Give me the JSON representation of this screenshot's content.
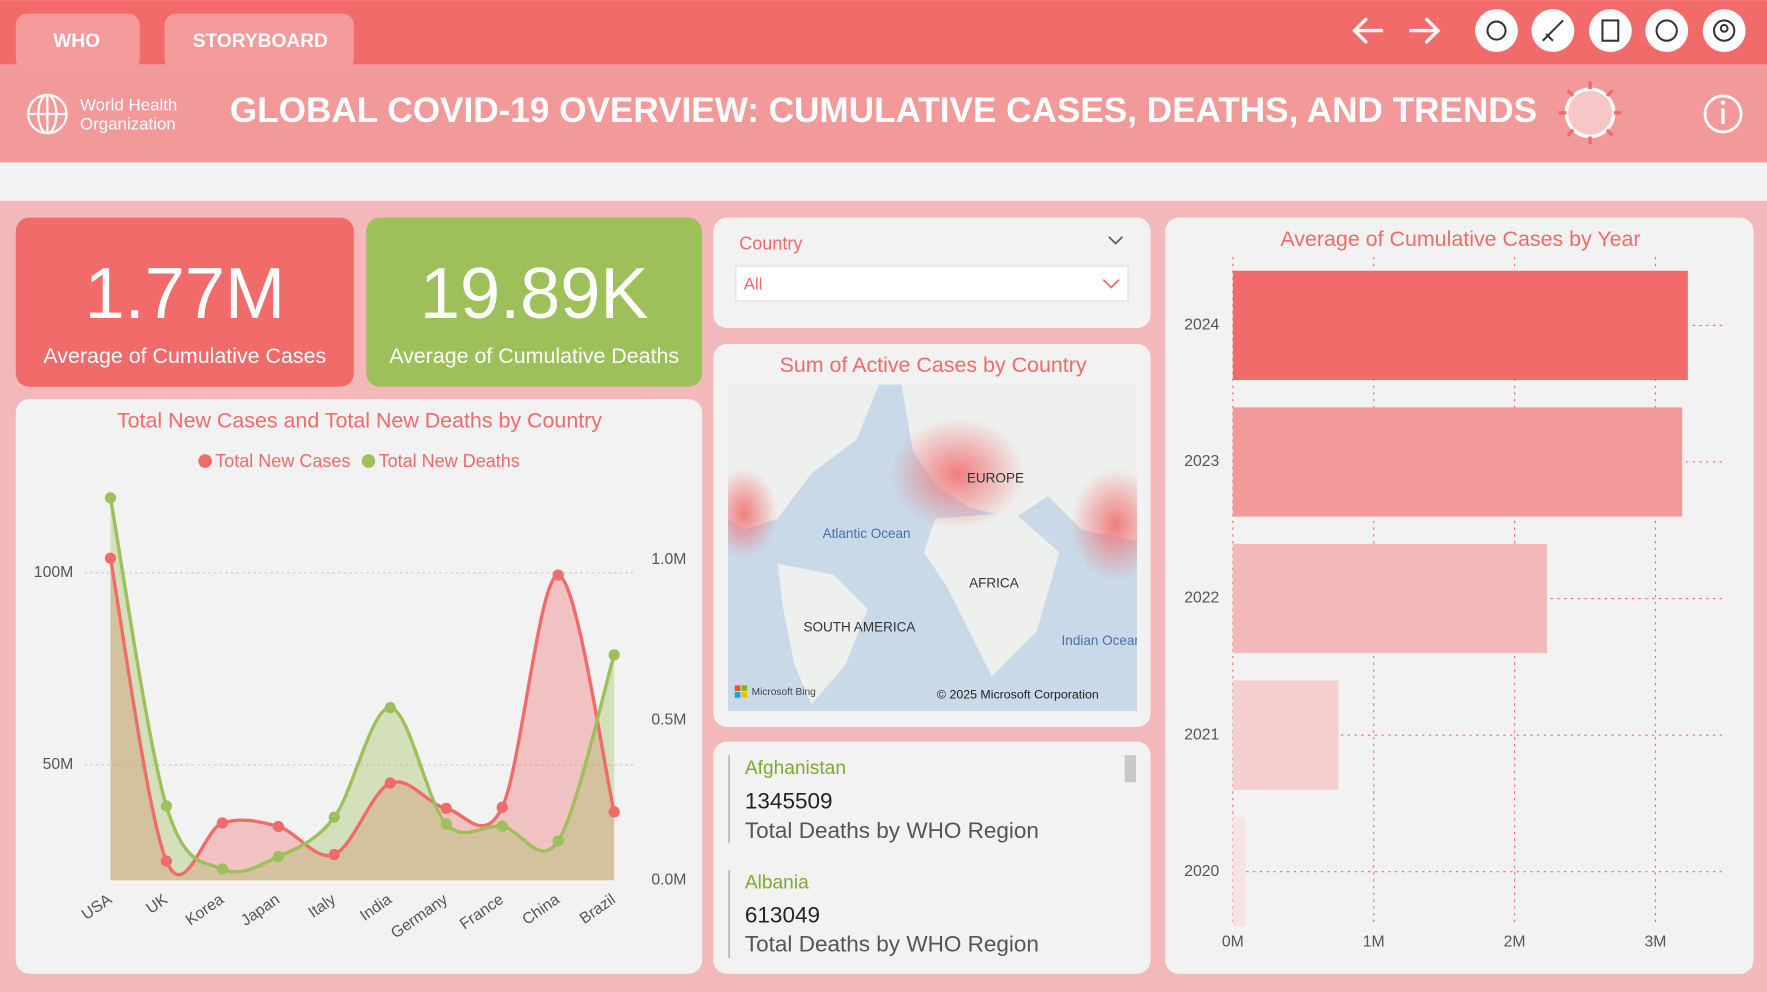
{
  "tabs": [
    "WHO",
    "STORYBOARD"
  ],
  "header": {
    "logo_lines": [
      "World Health",
      "Organization"
    ],
    "title": "GLOBAL COVID-19 OVERVIEW: CUMULATIVE CASES, DEATHS, AND TRENDS"
  },
  "kpis": [
    {
      "value": "1.77M",
      "label": "Average of Cumulative Cases"
    },
    {
      "value": "19.89K",
      "label": "Average of Cumulative Deaths"
    }
  ],
  "slicer": {
    "label": "Country",
    "selection": "All"
  },
  "map": {
    "title": "Sum of Active Cases by Country",
    "labels": [
      "EUROPE",
      "Atlantic Ocean",
      "AFRICA",
      "SOUTH AMERICA",
      "Indian Ocean"
    ],
    "attribution": [
      "Microsoft Bing",
      "© 2025 Microsoft Corporation"
    ]
  },
  "cards": [
    {
      "name": "Afghanistan",
      "value": 1345509,
      "label": "Total Deaths by WHO Region"
    },
    {
      "name": "Albania",
      "value": 613049,
      "label": "Total Deaths by WHO Region"
    }
  ],
  "chart_data": [
    {
      "type": "line",
      "title": "Total New Cases and Total New Deaths by Country",
      "area": true,
      "smooth": true,
      "categories": [
        "USA",
        "UK",
        "Korea",
        "Japan",
        "Italy",
        "India",
        "Germany",
        "France",
        "China",
        "Brazil"
      ],
      "series": [
        {
          "name": "Total New Cases",
          "color": "#f26b6b",
          "values": [
            103800000,
            25000000,
            34900000,
            34000000,
            26700000,
            45300000,
            38700000,
            39000000,
            99400000,
            37800000
          ]
        },
        {
          "name": "Total New Deaths",
          "color": "#9dc05a",
          "axis": "y2",
          "values": [
            1194000,
            232000,
            35000,
            74000,
            197000,
            539000,
            176000,
            169000,
            123000,
            704000
          ]
        }
      ],
      "ylim": [
        20000000,
        120000000
      ],
      "yticks": [
        {
          "value": 50000000,
          "label": "50M"
        },
        {
          "value": 100000000,
          "label": "100M"
        }
      ],
      "y2lim": [
        0,
        1200000
      ],
      "y2ticks": [
        {
          "value": 0,
          "label": "0.0M"
        },
        {
          "value": 500000,
          "label": "0.5M"
        },
        {
          "value": 1000000,
          "label": "1.0M"
        }
      ],
      "grid": true,
      "legend": "top"
    },
    {
      "type": "bar",
      "orientation": "horizontal",
      "title": "Average of Cumulative Cases by Year",
      "categories": [
        "2024",
        "2023",
        "2022",
        "2021",
        "2020"
      ],
      "values": [
        3230000,
        3190000,
        2230000,
        750000,
        90000
      ],
      "colors": [
        "#f26b6b",
        "#f29a9a",
        "#f2b8ba",
        "#f5cfd0",
        "#f8e3e4"
      ],
      "xlim": [
        0,
        3500000
      ],
      "xticks": [
        {
          "value": 0,
          "label": "0M"
        },
        {
          "value": 1000000,
          "label": "1M"
        },
        {
          "value": 2000000,
          "label": "2M"
        },
        {
          "value": 3000000,
          "label": "3M"
        }
      ],
      "grid": true
    }
  ]
}
